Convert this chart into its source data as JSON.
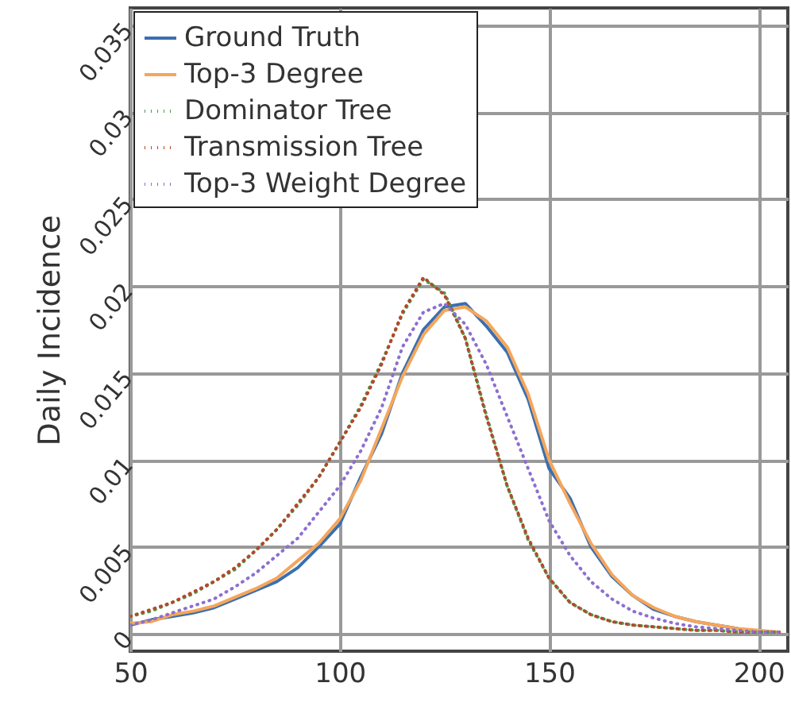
{
  "chart_data": {
    "type": "line",
    "ylabel": "Daily Incidence",
    "x": [
      50,
      55,
      60,
      65,
      70,
      75,
      80,
      85,
      90,
      95,
      100,
      105,
      110,
      115,
      120,
      125,
      130,
      135,
      140,
      145,
      150,
      155,
      160,
      165,
      170,
      175,
      180,
      185,
      190,
      195,
      200,
      205
    ],
    "series": [
      {
        "name": "Ground Truth",
        "color": "#3a6fb0",
        "line_style": "solid",
        "values": [
          0.0005,
          0.0008,
          0.001,
          0.0012,
          0.0015,
          0.002,
          0.0025,
          0.003,
          0.0038,
          0.005,
          0.0063,
          0.009,
          0.0115,
          0.015,
          0.0175,
          0.0188,
          0.019,
          0.0177,
          0.0162,
          0.0135,
          0.0095,
          0.0078,
          0.005,
          0.0033,
          0.0022,
          0.0014,
          0.001,
          0.0007,
          0.0005,
          0.0003,
          null,
          null
        ]
      },
      {
        "name": "Top-3 Degree",
        "color": "#f5a65b",
        "line_style": "solid",
        "values": [
          0.0006,
          0.0007,
          0.0011,
          0.0013,
          0.0016,
          0.0021,
          0.0026,
          0.0032,
          0.0042,
          0.0052,
          0.0066,
          0.0088,
          0.0118,
          0.0148,
          0.0172,
          0.0186,
          0.0188,
          0.018,
          0.0165,
          0.0138,
          0.01,
          0.0075,
          0.0052,
          0.0034,
          0.0022,
          0.0015,
          0.001,
          0.0007,
          0.0005,
          0.0003,
          0.0002,
          0.0001
        ]
      },
      {
        "name": "Dominator Tree",
        "color": "#4e9a4e",
        "line_style": "dotted",
        "values": [
          0.001,
          0.0013,
          0.0018,
          0.0023,
          0.003,
          0.0037,
          0.0048,
          0.006,
          0.0074,
          0.009,
          0.011,
          0.0131,
          0.0156,
          0.0184,
          0.0204,
          0.0196,
          0.017,
          0.0126,
          0.0085,
          0.0054,
          0.0032,
          0.0018,
          0.0011,
          0.0007,
          0.0005,
          0.0004,
          0.0003,
          0.0002,
          0.0002,
          0.0001,
          0.0001,
          0.0001
        ]
      },
      {
        "name": "Transmission Tree",
        "color": "#b5482b",
        "line_style": "dotted",
        "values": [
          0.001,
          0.0014,
          0.0018,
          0.0024,
          0.003,
          0.0038,
          0.0048,
          0.006,
          0.0075,
          0.009,
          0.011,
          0.013,
          0.0155,
          0.0185,
          0.0205,
          0.0195,
          0.017,
          0.0125,
          0.0085,
          0.0055,
          0.0032,
          0.0018,
          0.0011,
          0.0007,
          0.0005,
          0.0004,
          0.0003,
          0.0002,
          0.0002,
          0.0001,
          0.0001,
          0.0001
        ]
      },
      {
        "name": "Top-3 Weight Degree",
        "color": "#8c6fd0",
        "line_style": "dotted",
        "values": [
          0.0005,
          0.0008,
          0.0012,
          0.0016,
          0.002,
          0.0027,
          0.0035,
          0.0045,
          0.0055,
          0.007,
          0.0085,
          0.0105,
          0.013,
          0.0165,
          0.0185,
          0.019,
          0.0178,
          0.0155,
          0.0125,
          0.0095,
          0.0065,
          0.0045,
          0.003,
          0.002,
          0.0013,
          0.0009,
          0.0006,
          0.0004,
          0.0003,
          0.0002,
          0.0001,
          0.0001
        ]
      }
    ],
    "xlim": [
      50,
      207
    ],
    "xticks": [
      50,
      100,
      150,
      200
    ],
    "ylim": [
      -0.001,
      0.036
    ],
    "yticks": [
      0,
      0.005,
      0.01,
      0.015,
      0.02,
      0.025,
      0.03,
      0.035
    ],
    "grid": true,
    "legend": "top left"
  }
}
